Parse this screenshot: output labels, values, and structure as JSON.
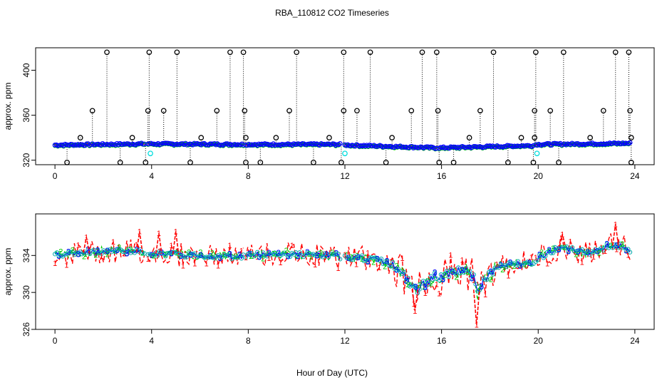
{
  "figure": {
    "title": "RBA_110812  CO2 Timeseries",
    "xlabel": "Hour of Day (UTC)"
  },
  "chart_data": [
    {
      "type": "scatter",
      "ylabel": "approx. ppm",
      "xlim": [
        -0.8,
        24.8
      ],
      "ylim": [
        316,
        420
      ],
      "xticks": [
        0,
        4,
        8,
        12,
        16,
        20,
        24
      ],
      "yticks": [
        320,
        360,
        400
      ],
      "grid": false,
      "colors": {
        "raw": "#000000",
        "series1": "#ff0000",
        "series2": "#00cc00",
        "series3": "#0000ff",
        "filtered": "#00dddd"
      },
      "baseline_segments": [
        {
          "x_start": 0.0,
          "x_end": 3.7,
          "y_start": 333.5,
          "y_end": 334.5
        },
        {
          "x_start": 3.85,
          "x_end": 7.8,
          "y_start": 334.5,
          "y_end": 334.0
        },
        {
          "x_start": 7.9,
          "x_end": 11.8,
          "y_start": 334.0,
          "y_end": 334.0
        },
        {
          "x_start": 12.0,
          "x_end": 15.8,
          "y_start": 333.5,
          "y_end": 331.0
        },
        {
          "x_start": 15.9,
          "x_end": 19.8,
          "y_start": 331.0,
          "y_end": 333.0
        },
        {
          "x_start": 19.9,
          "x_end": 23.8,
          "y_start": 334.0,
          "y_end": 335.0
        }
      ],
      "spikes_high": [
        2.15,
        3.9,
        5.05,
        7.25,
        7.8,
        10.0,
        11.95,
        13.05,
        15.2,
        15.8,
        18.15,
        19.9,
        21.05,
        23.2,
        23.75
      ],
      "spikes_mid": [
        1.55,
        3.85,
        4.5,
        6.7,
        7.85,
        9.7,
        11.95,
        12.5,
        14.75,
        15.85,
        17.6,
        19.85,
        20.5,
        22.7,
        23.8
      ],
      "spikes_small": [
        1.05,
        3.2,
        6.05,
        7.9,
        9.15,
        11.35,
        13.95,
        17.15,
        19.3,
        19.85,
        22.15,
        23.85
      ],
      "dips_low": [
        0.5,
        2.7,
        3.75,
        5.6,
        7.9,
        8.5,
        10.7,
        11.85,
        13.7,
        15.9,
        16.5,
        18.75,
        19.8,
        20.85,
        23.85
      ],
      "filtered_dips": [
        {
          "x": 3.95,
          "y": 326
        },
        {
          "x": 12.0,
          "y": 326
        },
        {
          "x": 19.95,
          "y": 326
        }
      ]
    },
    {
      "type": "line",
      "ylabel": "approx. ppm",
      "xlim": [
        -0.8,
        24.8
      ],
      "ylim": [
        326,
        338.5
      ],
      "xticks": [
        0,
        4,
        8,
        12,
        16,
        20,
        24
      ],
      "yticks": [
        326,
        330,
        334
      ],
      "grid": false,
      "point_symbols": [
        "1",
        "2",
        "3"
      ],
      "colors": {
        "series1": "#ff0000",
        "series2": "#00cc00",
        "series3": "#0000ff",
        "circles": "#00aaaa"
      },
      "segments": [
        {
          "x": [
            0.0,
            1.0,
            2.0,
            3.0,
            3.7
          ],
          "y": [
            334.2,
            334.2,
            334.5,
            334.5,
            334.3
          ]
        },
        {
          "x": [
            3.85,
            5.0,
            6.0,
            7.0,
            7.8
          ],
          "y": [
            334.3,
            334.1,
            334.0,
            333.9,
            333.9
          ]
        },
        {
          "x": [
            7.9,
            9.0,
            10.0,
            11.0,
            11.8
          ],
          "y": [
            334.0,
            334.2,
            334.1,
            334.0,
            333.9
          ]
        },
        {
          "x": [
            12.0,
            12.5,
            13.0,
            13.5,
            14.0,
            14.4,
            14.8,
            15.0,
            15.3,
            15.8
          ],
          "y": [
            333.9,
            333.8,
            333.6,
            333.4,
            333.0,
            332.0,
            330.5,
            330.2,
            331.0,
            331.8
          ]
        },
        {
          "x": [
            15.9,
            16.5,
            17.0,
            17.3,
            17.5,
            17.8,
            18.2,
            18.8,
            19.3,
            19.8
          ],
          "y": [
            331.5,
            332.2,
            332.5,
            331.8,
            329.8,
            331.5,
            332.5,
            333.0,
            333.2,
            333.3
          ]
        },
        {
          "x": [
            19.9,
            20.5,
            21.0,
            21.5,
            22.0,
            22.5,
            23.0,
            23.5,
            23.8
          ],
          "y": [
            333.6,
            334.4,
            335.0,
            334.5,
            334.3,
            334.6,
            335.1,
            335.0,
            334.5
          ]
        }
      ],
      "series1_dips": [
        {
          "x": 14.9,
          "y": 328.0
        },
        {
          "x": 17.45,
          "y": 326.5
        }
      ],
      "series1_peaks": [
        {
          "x": 1.3,
          "y": 336.0
        },
        {
          "x": 3.5,
          "y": 336.6
        },
        {
          "x": 4.3,
          "y": 336.4
        },
        {
          "x": 5.0,
          "y": 336.6
        },
        {
          "x": 21.0,
          "y": 336.3
        },
        {
          "x": 23.2,
          "y": 337.4
        }
      ]
    }
  ]
}
